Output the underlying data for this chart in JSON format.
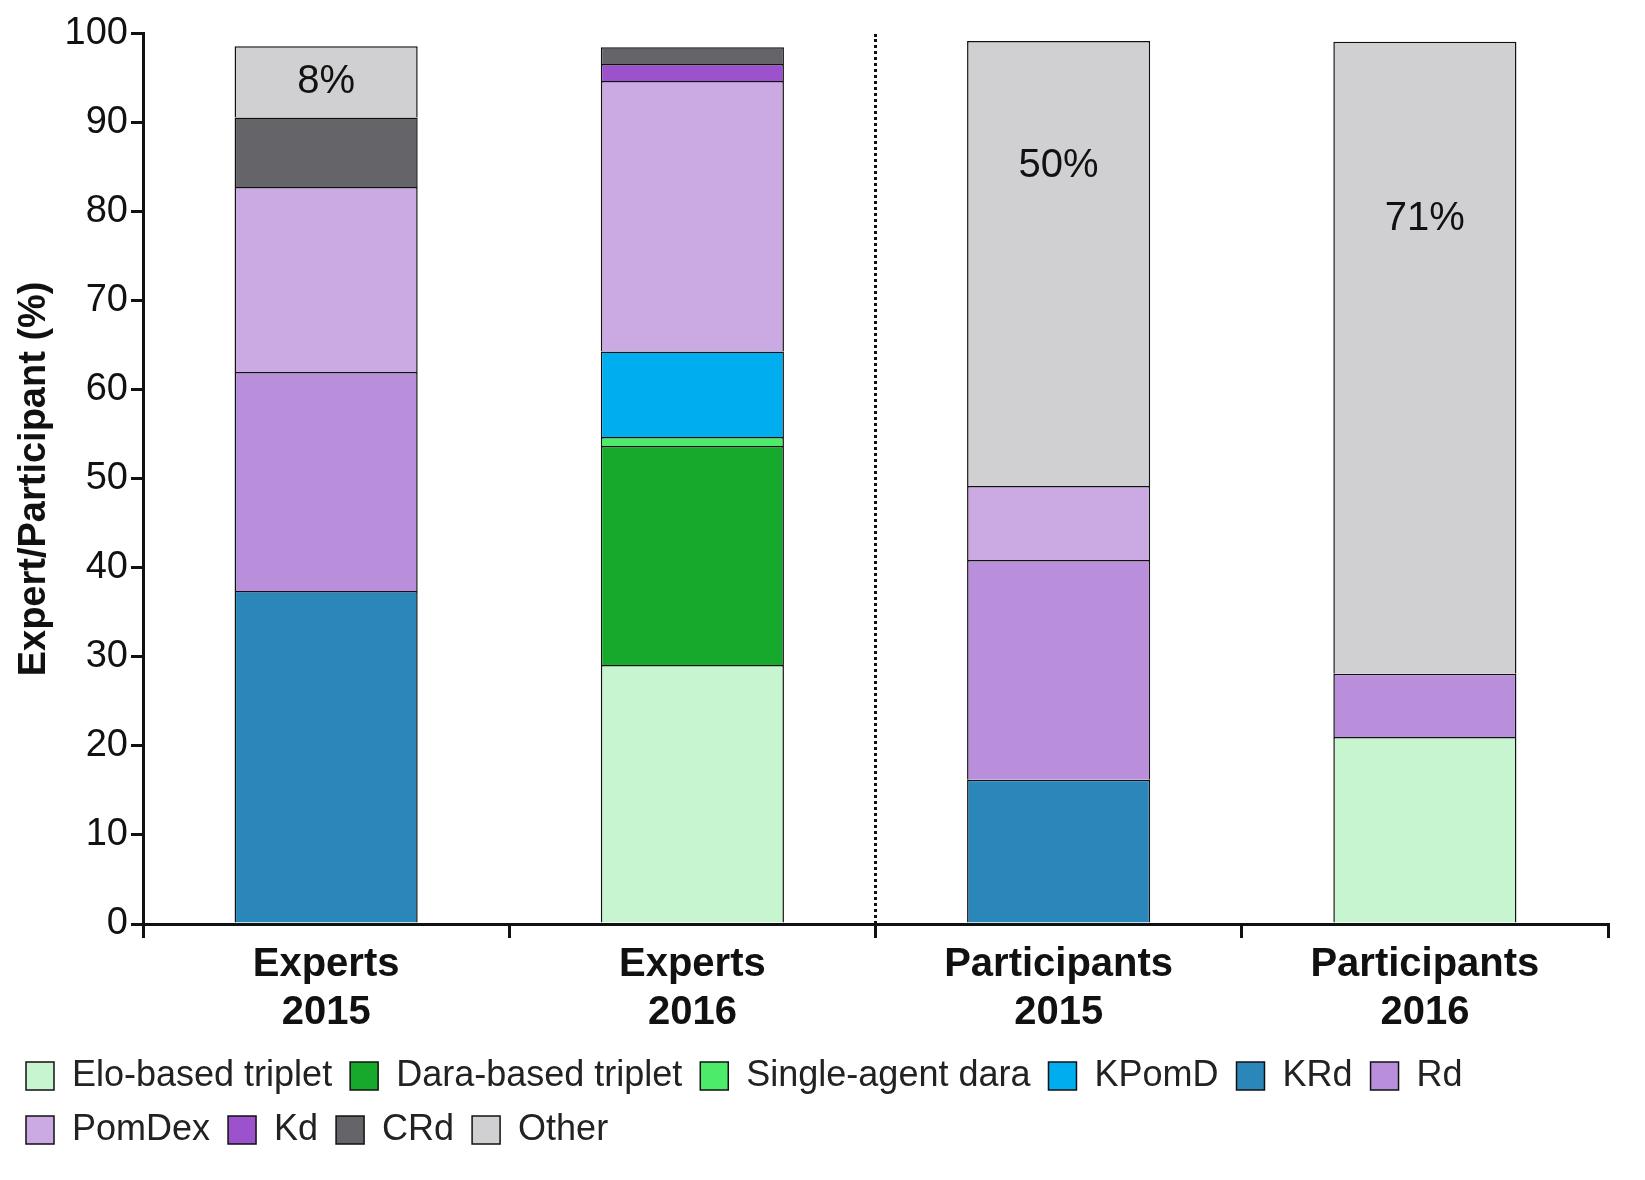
{
  "chart_data": {
    "type": "bar",
    "stacked": true,
    "ylabel": "Expert/Participant (%)",
    "categories": [
      "Experts 2015",
      "Experts 2016",
      "Participants 2015",
      "Participants 2016"
    ],
    "series": [
      {
        "name": "Elo-based triplet",
        "color": "#c6f5cf",
        "values": [
          null,
          29.1,
          null,
          21.0
        ]
      },
      {
        "name": "Dara-based triplet",
        "color": "#16a92b",
        "values": [
          null,
          24.6,
          null,
          null
        ]
      },
      {
        "name": "Single-agent dara",
        "color": "#4ceb6a",
        "values": [
          null,
          1.0,
          null,
          null
        ]
      },
      {
        "name": "KPomD",
        "color": "#00aeef",
        "values": [
          null,
          9.6,
          null,
          null
        ]
      },
      {
        "name": "KRd",
        "color": "#2b86b9",
        "values": [
          37.4,
          null,
          16.2,
          null
        ]
      },
      {
        "name": "Rd",
        "color": "#b98fdc",
        "values": [
          24.6,
          null,
          24.7,
          7.1
        ]
      },
      {
        "name": "PomDex",
        "color": "#cba9e3",
        "values": [
          20.8,
          30.4,
          8.3,
          null
        ]
      },
      {
        "name": "Kd",
        "color": "#9b52cc",
        "values": [
          null,
          1.9,
          null,
          null
        ]
      },
      {
        "name": "CRd",
        "color": "#646469",
        "values": [
          7.8,
          1.9,
          null,
          null
        ]
      },
      {
        "name": "Other",
        "color": "#d0d0d2",
        "values": [
          8,
          null,
          50,
          71
        ],
        "value_labels": [
          "8%",
          null,
          "50%",
          "71%"
        ]
      }
    ],
    "ylim": [
      0,
      100
    ],
    "yticks": [
      0,
      10,
      20,
      30,
      40,
      50,
      60,
      70,
      80,
      90,
      100
    ],
    "grid": false,
    "legend": "bottom"
  }
}
